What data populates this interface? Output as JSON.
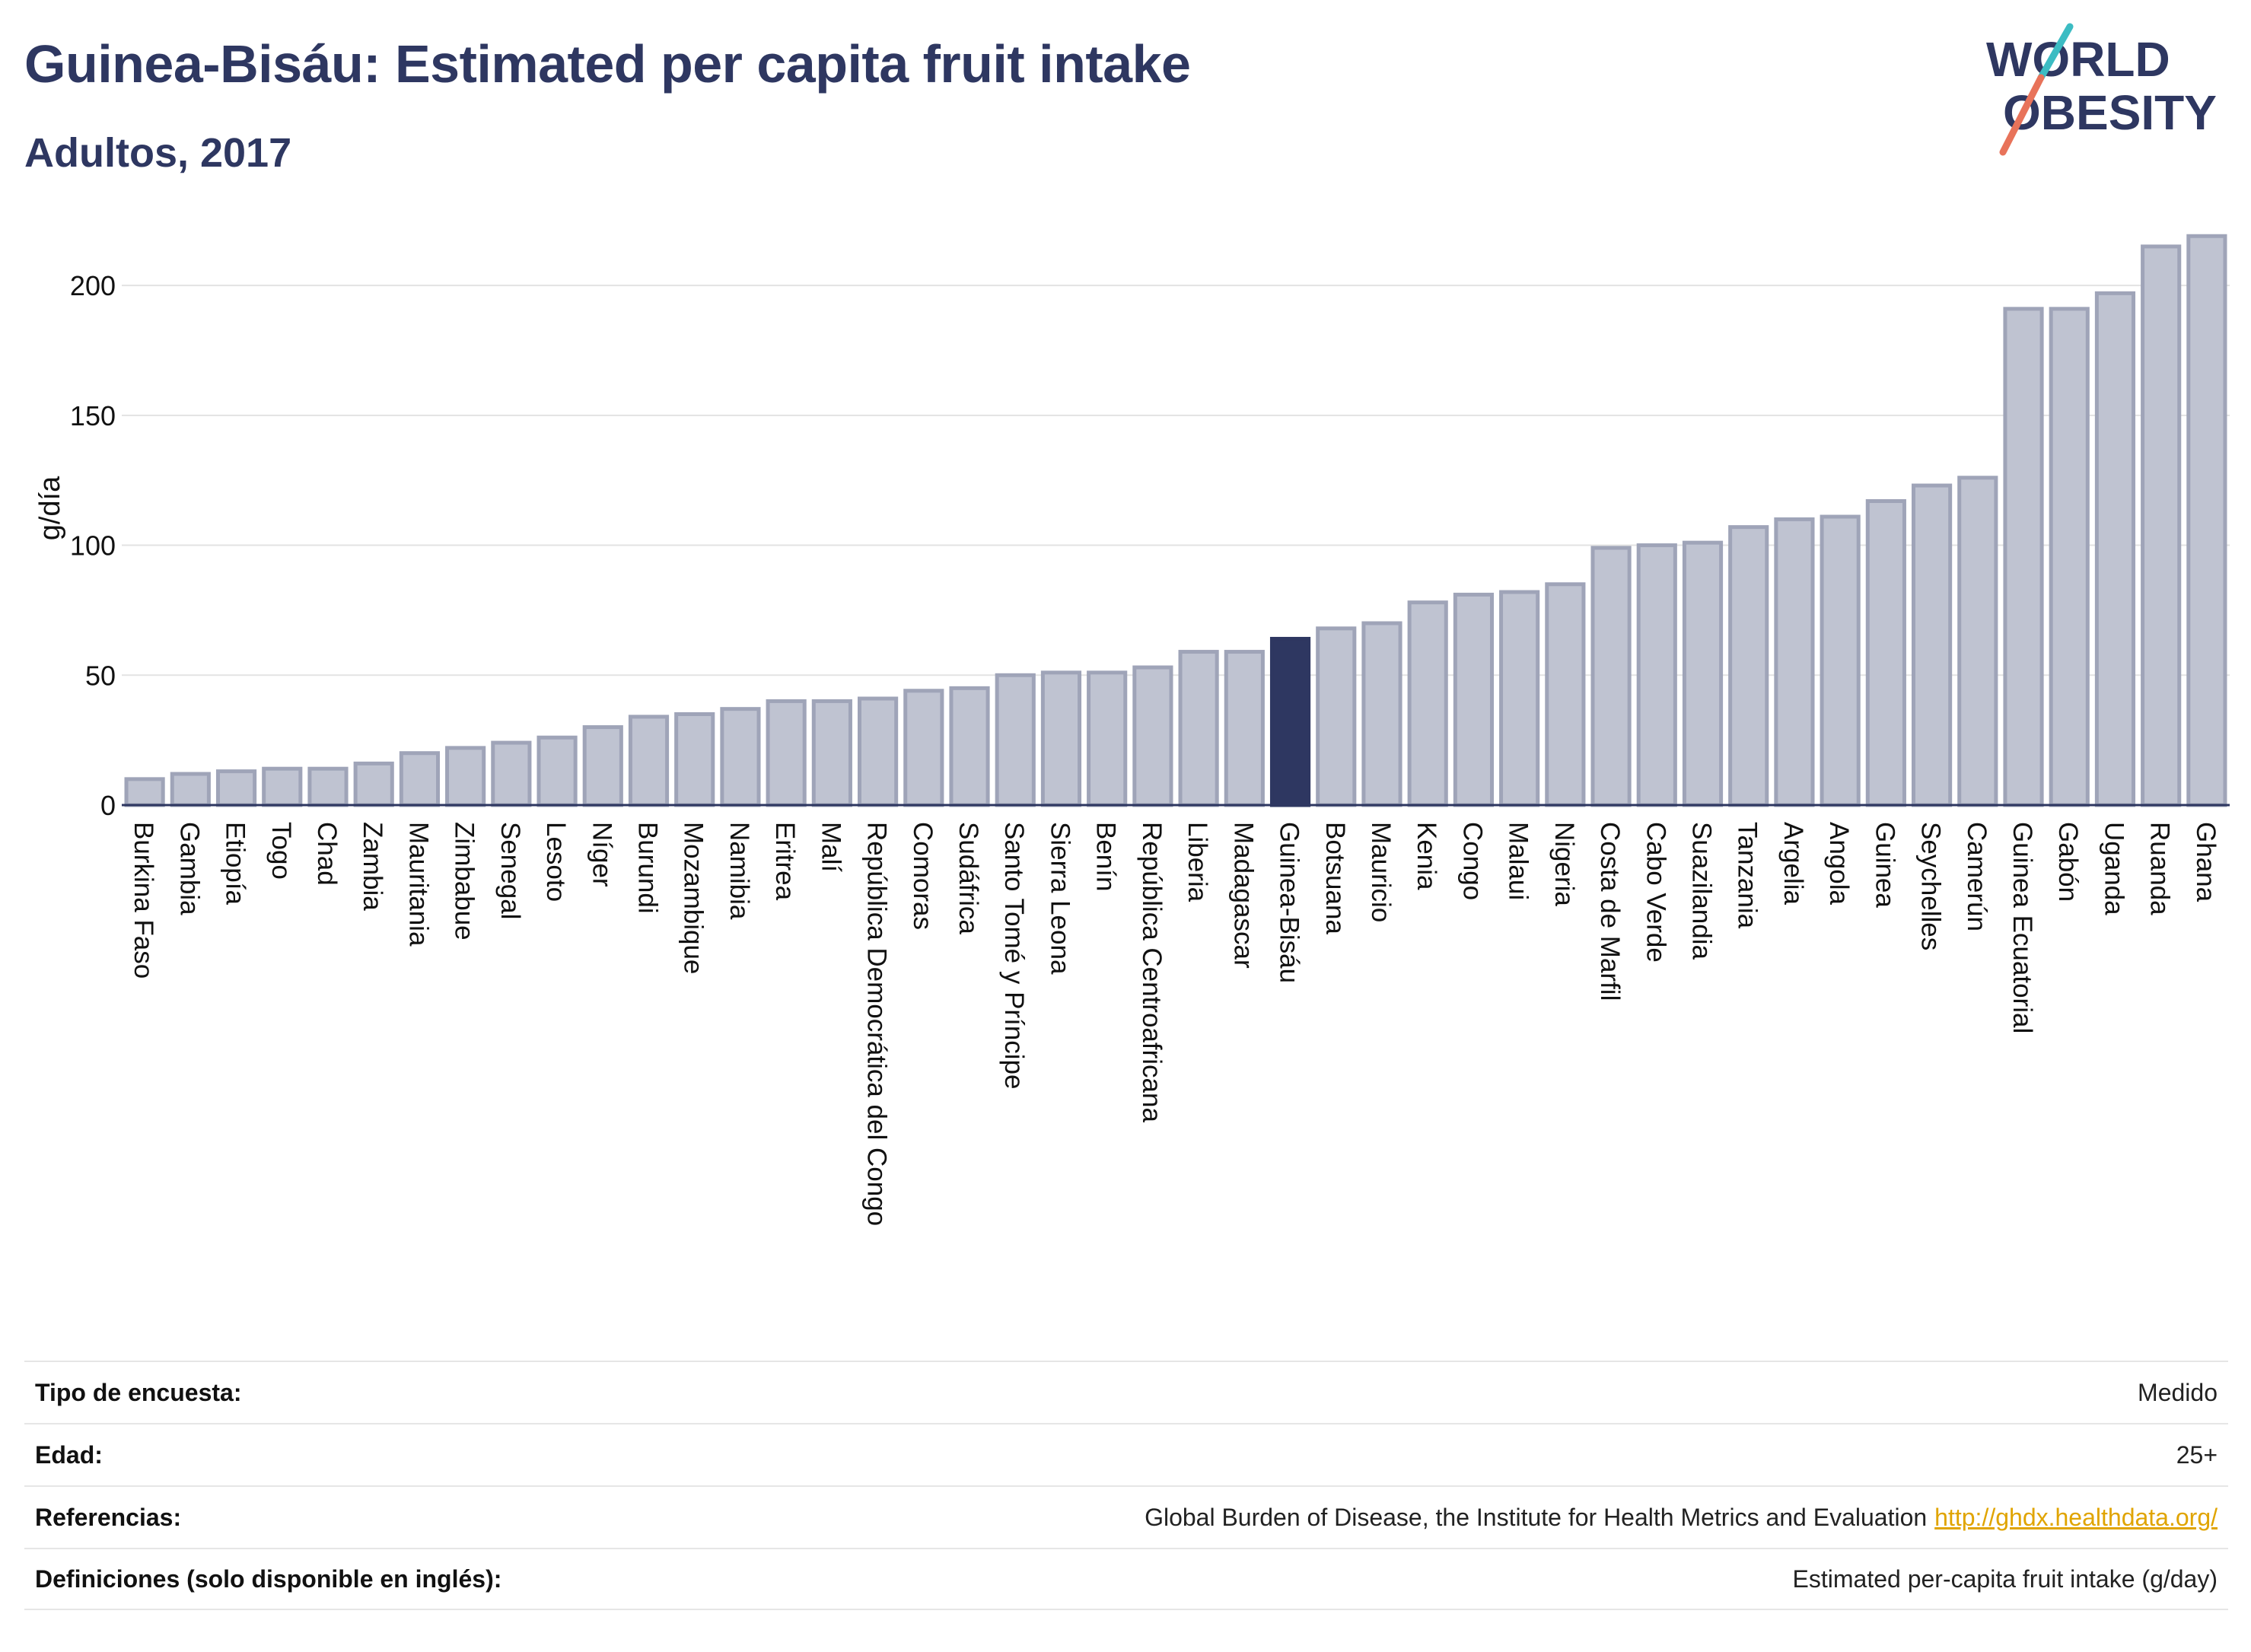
{
  "header": {
    "title": "Guinea-Bisáu: Estimated per capita fruit intake",
    "subtitle": "Adultos, 2017"
  },
  "logo": {
    "line1": "WORLD",
    "line2": "OBESITY",
    "accent_teal": "#3cbcc3",
    "accent_coral": "#e8735a",
    "brand": "#2e3761"
  },
  "colors": {
    "bar": "#bfc3d1",
    "bar_stroke": "#9fa4b8",
    "highlight": "#2e3761"
  },
  "chart_data": {
    "type": "bar",
    "ylabel": "g/día",
    "ylim": [
      0,
      222
    ],
    "yticks": [
      0,
      50,
      100,
      150,
      200
    ],
    "highlight": "Guinea-Bisáu",
    "categories": [
      "Burkina Faso",
      "Gambia",
      "Etiopía",
      "Togo",
      "Chad",
      "Zambia",
      "Mauritania",
      "Zimbabue",
      "Senegal",
      "Lesoto",
      "Níger",
      "Burundi",
      "Mozambique",
      "Namibia",
      "Eritrea",
      "Malí",
      "República Democrática del Congo",
      "Comoras",
      "Sudáfrica",
      "Santo Tomé y Príncipe",
      "Sierra Leona",
      "Benín",
      "República Centroafricana",
      "Liberia",
      "Madagascar",
      "Guinea-Bisáu",
      "Botsuana",
      "Mauricio",
      "Kenia",
      "Congo",
      "Malaui",
      "Nigeria",
      "Costa de Marfil",
      "Cabo Verde",
      "Suazilandia",
      "Tanzania",
      "Argelia",
      "Angola",
      "Guinea",
      "Seychelles",
      "Camerún",
      "Guinea Ecuatorial",
      "Gabón",
      "Uganda",
      "Ruanda",
      "Ghana"
    ],
    "values": [
      10,
      12,
      13,
      14,
      14,
      16,
      20,
      22,
      24,
      26,
      30,
      34,
      35,
      37,
      40,
      40,
      41,
      44,
      45,
      50,
      51,
      51,
      53,
      59,
      59,
      64,
      68,
      70,
      78,
      81,
      82,
      85,
      99,
      100,
      101,
      107,
      110,
      111,
      117,
      123,
      126,
      191,
      191,
      197,
      215,
      219
    ]
  },
  "info": {
    "rows": [
      {
        "label": "Tipo de encuesta:",
        "value": "Medido"
      },
      {
        "label": "Edad:",
        "value": "25+"
      },
      {
        "label": "Referencias:",
        "value": "Global Burden of Disease, the Institute for Health Metrics and Evaluation",
        "link": "http://ghdx.healthdata.org/"
      },
      {
        "label": "Definiciones (solo disponible en inglés):",
        "value": "Estimated per-capita fruit intake (g/day)"
      }
    ]
  }
}
